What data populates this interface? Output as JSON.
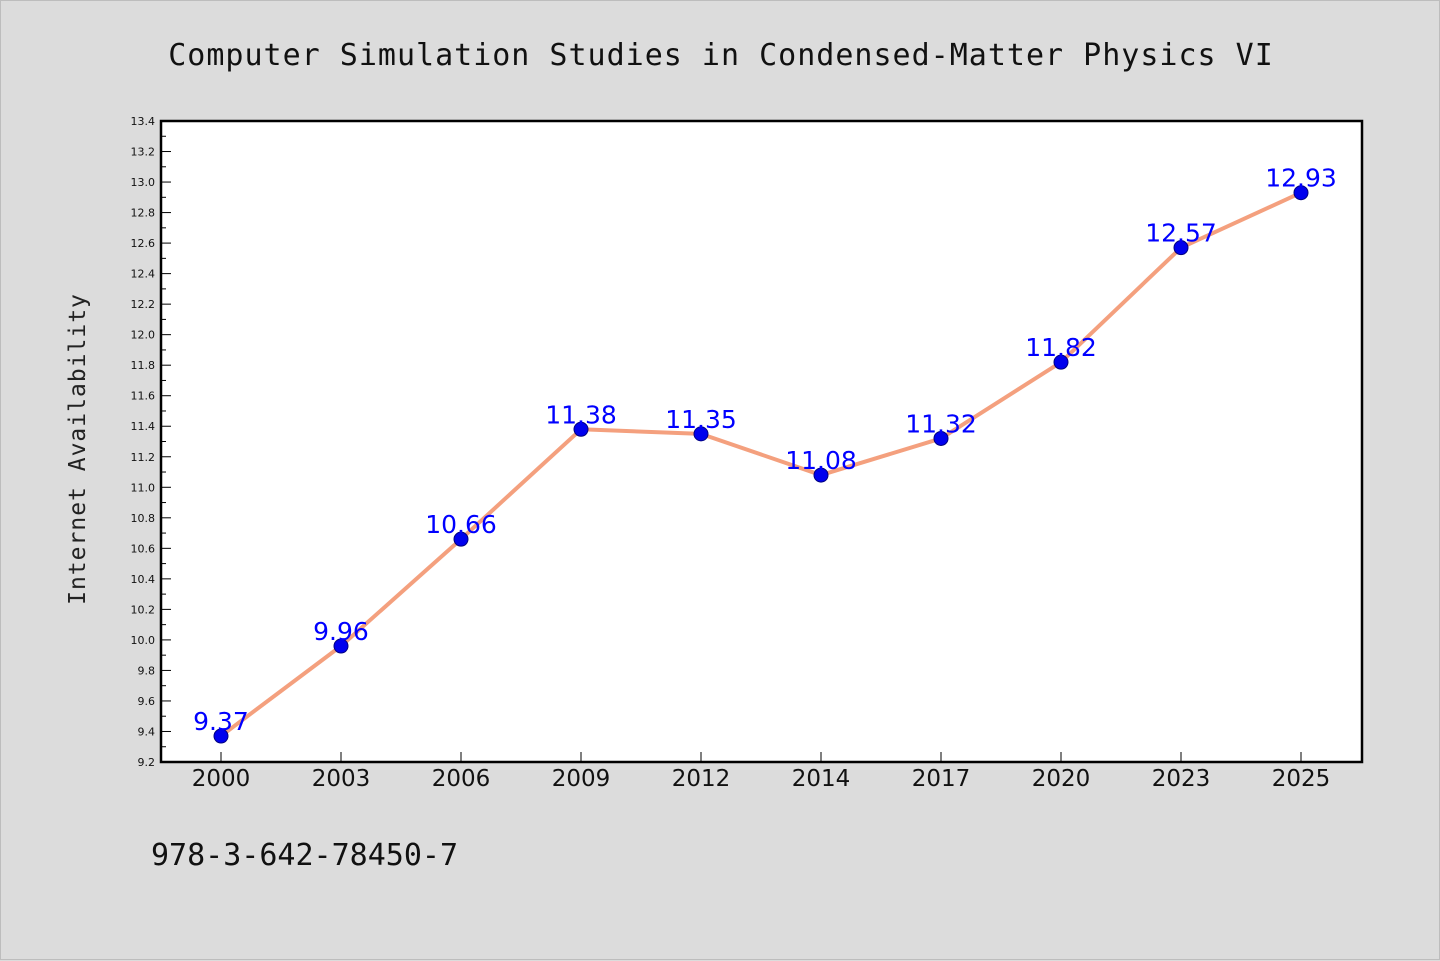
{
  "chart_data": {
    "type": "line",
    "title": "Computer Simulation Studies in Condensed-Matter Physics VI",
    "xlabel": "",
    "ylabel": "Internet Availability",
    "categories": [
      "2000",
      "2003",
      "2006",
      "2009",
      "2012",
      "2014",
      "2017",
      "2020",
      "2023",
      "2025"
    ],
    "series": [
      {
        "values": [
          9.37,
          9.96,
          10.66,
          11.38,
          11.35,
          11.08,
          11.32,
          11.82,
          12.57,
          12.93
        ],
        "data_labels": [
          "9.37",
          "9.96",
          "10.66",
          "11.38",
          "11.35",
          "11.08",
          "11.32",
          "11.82",
          "12.57",
          "12.93"
        ]
      }
    ],
    "ylim": [
      9.2,
      13.4
    ],
    "yticks": [
      "9.2",
      "9.4",
      "9.6",
      "9.8",
      "10.0",
      "10.2",
      "10.4",
      "10.6",
      "10.8",
      "11.0",
      "11.2",
      "11.4",
      "11.6",
      "11.8",
      "12.0",
      "12.2",
      "12.4",
      "12.6",
      "12.8",
      "13.0",
      "13.2",
      "13.4"
    ],
    "grid": false,
    "legend": "none",
    "colors": {
      "line": "#f4a07e",
      "marker": "#0000ee",
      "marker_edge": "#000080",
      "label": "#0000ff",
      "plot_bg": "#ffffff",
      "page_bg": "#dcdcdc"
    }
  },
  "footer": {
    "isbn": "978-3-642-78450-7"
  }
}
